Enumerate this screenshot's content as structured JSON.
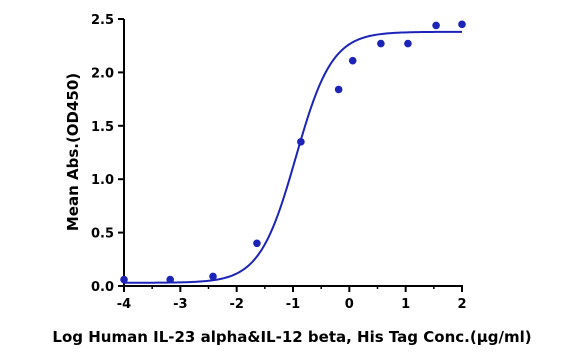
{
  "chart_data": {
    "type": "scatter",
    "xlabel": "Log Human IL-23 alpha&IL-12 beta, His Tag Conc.(μg/ml)",
    "ylabel": "Mean Abs.(OD450)",
    "xlim": [
      -4,
      2
    ],
    "ylim": [
      0,
      2.5
    ],
    "x_ticks": [
      "-4",
      "-3",
      "-2",
      "-1",
      "0",
      "1",
      "2"
    ],
    "y_ticks": [
      "0.0",
      "0.5",
      "1.0",
      "1.5",
      "2.0",
      "2.5"
    ],
    "grid": false,
    "legend": "none",
    "series": [
      {
        "points": [
          {
            "x": -4.0,
            "y": 0.06
          },
          {
            "x": -3.18,
            "y": 0.06
          },
          {
            "x": -2.42,
            "y": 0.09
          },
          {
            "x": -1.64,
            "y": 0.4
          },
          {
            "x": -0.86,
            "y": 1.35
          },
          {
            "x": -0.19,
            "y": 1.84
          },
          {
            "x": 0.06,
            "y": 2.11
          },
          {
            "x": 0.56,
            "y": 2.27
          },
          {
            "x": 1.04,
            "y": 2.27
          },
          {
            "x": 1.54,
            "y": 2.44
          },
          {
            "x": 2.0,
            "y": 2.45
          }
        ],
        "fit_curve": {
          "model": "4PL",
          "bottom": 0.03,
          "top": 2.38,
          "log_ec50": -0.95,
          "hill_slope": 1.35
        }
      }
    ],
    "colors": {
      "series": "#1c24b8",
      "axis": "#000000"
    }
  }
}
